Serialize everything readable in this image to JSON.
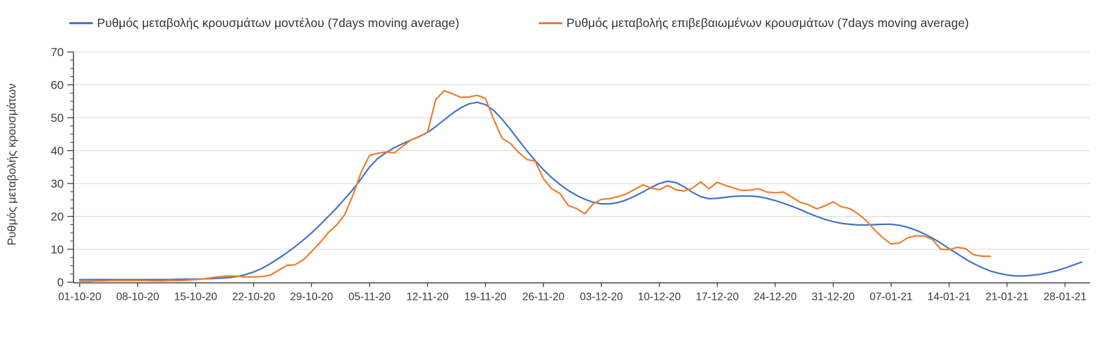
{
  "legend": {
    "items": [
      {
        "label": "Ρυθμός μεταβολής κρουσμάτων μοντέλου (7days moving average)",
        "color": "#4472C4"
      },
      {
        "label": "Ρυθμός μεταβολής επιβεβαιωμένων κρουσμάτων (7days moving average)",
        "color": "#ED7D31"
      }
    ]
  },
  "y_axis": {
    "title": "Ρυθμός μεταβολής κρουσμάτων",
    "min": 0,
    "max": 70,
    "tick_step": 10,
    "minor_tick_step": 2.5,
    "tick_labels": [
      "0",
      "10",
      "20",
      "30",
      "40",
      "50",
      "60",
      "70"
    ]
  },
  "x_axis": {
    "tick_labels": [
      "01-10-20",
      "08-10-20",
      "15-10-20",
      "22-10-20",
      "29-10-20",
      "05-11-20",
      "12-11-20",
      "19-11-20",
      "26-11-20",
      "03-12-20",
      "10-12-20",
      "17-12-20",
      "24-12-20",
      "31-12-20",
      "07-01-21",
      "14-01-21",
      "21-01-21",
      "28-01-21"
    ]
  },
  "chart_data": {
    "type": "line",
    "title": "",
    "xlabel": "",
    "ylabel": "Ρυθμός μεταβολής κρουσμάτων",
    "ylim": [
      0,
      70
    ],
    "grid": "horizontal",
    "legend_position": "top",
    "x_start_date": "01-10-20",
    "x_interval_days": 1,
    "x_tick_labels": [
      "01-10-20",
      "08-10-20",
      "15-10-20",
      "22-10-20",
      "29-10-20",
      "05-11-20",
      "12-11-20",
      "19-11-20",
      "26-11-20",
      "03-12-20",
      "10-12-20",
      "17-12-20",
      "24-12-20",
      "31-12-20",
      "07-01-21",
      "14-01-21",
      "21-01-21",
      "28-01-21"
    ],
    "series": [
      {
        "name": "Ρυθμός μεταβολής κρουσμάτων μοντέλου (7days moving average)",
        "color": "#4472C4",
        "values": [
          0.8,
          0.8,
          0.8,
          0.8,
          0.8,
          0.8,
          0.8,
          0.8,
          0.8,
          0.8,
          0.8,
          0.8,
          0.9,
          0.9,
          0.9,
          1.0,
          1.1,
          1.2,
          1.4,
          1.7,
          2.3,
          3.1,
          4.2,
          5.6,
          7.2,
          8.9,
          10.8,
          12.8,
          15.0,
          17.4,
          19.9,
          22.5,
          25.3,
          28.2,
          31.5,
          35.0,
          37.6,
          39.4,
          40.9,
          42.1,
          43.2,
          44.3,
          45.5,
          47.3,
          49.3,
          51.3,
          53.0,
          54.2,
          54.7,
          54.0,
          52.2,
          49.6,
          46.5,
          43.2,
          40.0,
          37.0,
          34.2,
          31.8,
          29.7,
          27.9,
          26.4,
          25.2,
          24.3,
          23.8,
          23.8,
          24.2,
          25.0,
          26.1,
          27.4,
          28.8,
          30.0,
          30.7,
          30.3,
          29.0,
          27.3,
          26.0,
          25.4,
          25.5,
          25.8,
          26.1,
          26.2,
          26.2,
          26.0,
          25.5,
          24.8,
          24.0,
          23.1,
          22.1,
          21.0,
          20.0,
          19.1,
          18.4,
          17.9,
          17.6,
          17.4,
          17.4,
          17.5,
          17.6,
          17.6,
          17.3,
          16.7,
          15.8,
          14.7,
          13.4,
          11.9,
          10.2,
          8.6,
          7.0,
          5.6,
          4.4,
          3.4,
          2.7,
          2.2,
          1.9,
          1.9,
          2.1,
          2.4,
          2.9,
          3.5,
          4.3,
          5.2,
          6.1
        ]
      },
      {
        "name": "Ρυθμός μεταβολής επιβεβαιωμένων κρουσμάτων (7days moving average)",
        "color": "#ED7D31",
        "values": [
          0.3,
          0.3,
          0.4,
          0.4,
          0.5,
          0.5,
          0.5,
          0.5,
          0.5,
          0.4,
          0.4,
          0.5,
          0.5,
          0.6,
          0.8,
          1.0,
          1.4,
          1.7,
          1.9,
          1.8,
          1.6,
          1.6,
          1.7,
          2.1,
          3.6,
          5.1,
          5.3,
          6.8,
          9.3,
          12.0,
          15.0,
          17.3,
          20.5,
          26.5,
          33.5,
          38.5,
          39.2,
          39.6,
          39.3,
          41.3,
          43.2,
          44.2,
          45.5,
          55.5,
          58.2,
          57.3,
          56.2,
          56.3,
          56.8,
          55.9,
          49.5,
          43.8,
          42.2,
          39.5,
          37.3,
          36.8,
          31.5,
          28.4,
          27.0,
          23.3,
          22.4,
          20.8,
          23.8,
          25.2,
          25.4,
          26.0,
          26.8,
          28.2,
          29.6,
          28.6,
          28.1,
          29.4,
          28.1,
          27.7,
          28.6,
          30.5,
          28.4,
          30.4,
          29.4,
          28.6,
          27.9,
          28.0,
          28.4,
          27.4,
          27.2,
          27.4,
          25.9,
          24.3,
          23.6,
          22.3,
          23.2,
          24.4,
          22.9,
          22.4,
          20.8,
          18.7,
          15.9,
          13.5,
          11.6,
          11.9,
          13.5,
          14.1,
          14.0,
          13.0,
          10.0,
          9.9,
          10.6,
          10.2,
          8.3,
          7.9,
          7.9
        ]
      }
    ]
  },
  "style": {
    "gridline_color": "#d9d9d9",
    "axis_color": "#404040",
    "text_color": "#3a3a3a",
    "background": "#ffffff"
  }
}
